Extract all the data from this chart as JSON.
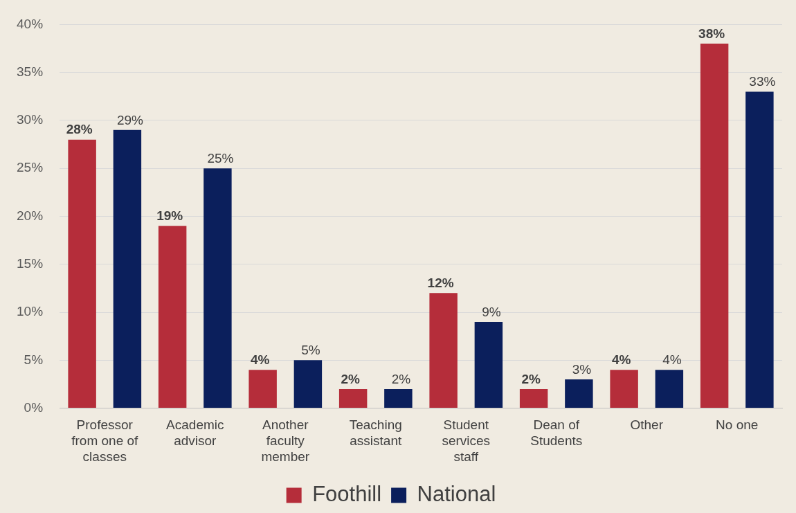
{
  "chart_data": {
    "type": "bar",
    "categories": [
      "Professor from one of classes",
      "Academic advisor",
      "Another faculty member",
      "Teaching assistant",
      "Student services staff",
      "Dean of Students",
      "Other",
      "No one"
    ],
    "series": [
      {
        "name": "Foothill",
        "color": "#b52d3a",
        "values": [
          28,
          19,
          4,
          2,
          12,
          2,
          4,
          38
        ],
        "value_labels": [
          "28%",
          "19%",
          "4%",
          "2%",
          "12%",
          "2%",
          "4%",
          "38%"
        ]
      },
      {
        "name": "National",
        "color": "#0b1f5c",
        "values": [
          29,
          25,
          5,
          2,
          9,
          3,
          4,
          33
        ],
        "value_labels": [
          "29%",
          "25%",
          "5%",
          "2%",
          "9%",
          "3%",
          "4%",
          "33%"
        ]
      }
    ],
    "ylim": [
      0,
      40
    ],
    "yticks": [
      {
        "value": 0,
        "label": "0%"
      },
      {
        "value": 5,
        "label": "5%"
      },
      {
        "value": 10,
        "label": "10%"
      },
      {
        "value": 15,
        "label": "15%"
      },
      {
        "value": 20,
        "label": "20%"
      },
      {
        "value": 25,
        "label": "25%"
      },
      {
        "value": 30,
        "label": "30%"
      },
      {
        "value": 35,
        "label": "35%"
      },
      {
        "value": 40,
        "label": "40%"
      }
    ],
    "grid": "y",
    "legend": "bottom"
  }
}
